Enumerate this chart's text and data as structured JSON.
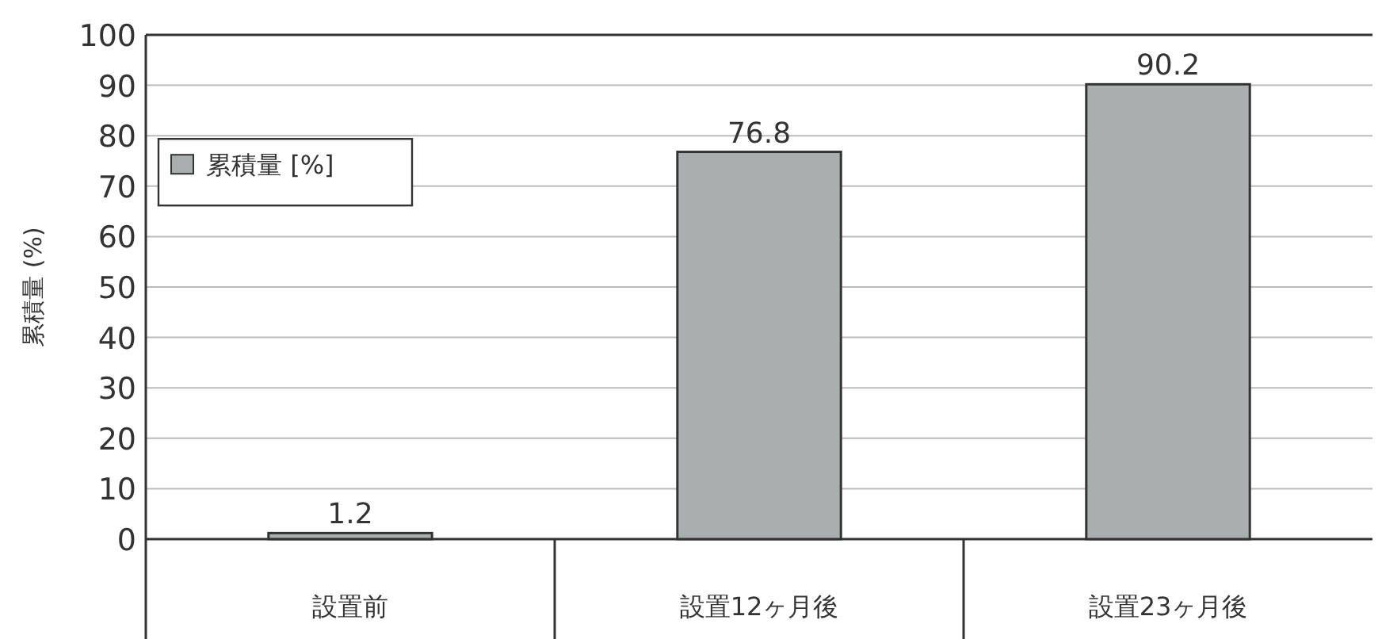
{
  "chart_data": {
    "type": "bar",
    "ylabel": "累積量 (%)",
    "categories": [
      "設置前",
      "設置12ヶ月後",
      "設置23ヶ月後"
    ],
    "series": [
      {
        "name": "累積量 [%]",
        "color": "#a9aeae",
        "values": [
          1.2,
          76.8,
          90.2
        ]
      }
    ],
    "ylim": [
      0,
      100
    ],
    "yticks": [
      0,
      10,
      20,
      30,
      40,
      50,
      60,
      70,
      80,
      90,
      100
    ],
    "grid": "y",
    "legend": "top left",
    "data_labels": true
  }
}
